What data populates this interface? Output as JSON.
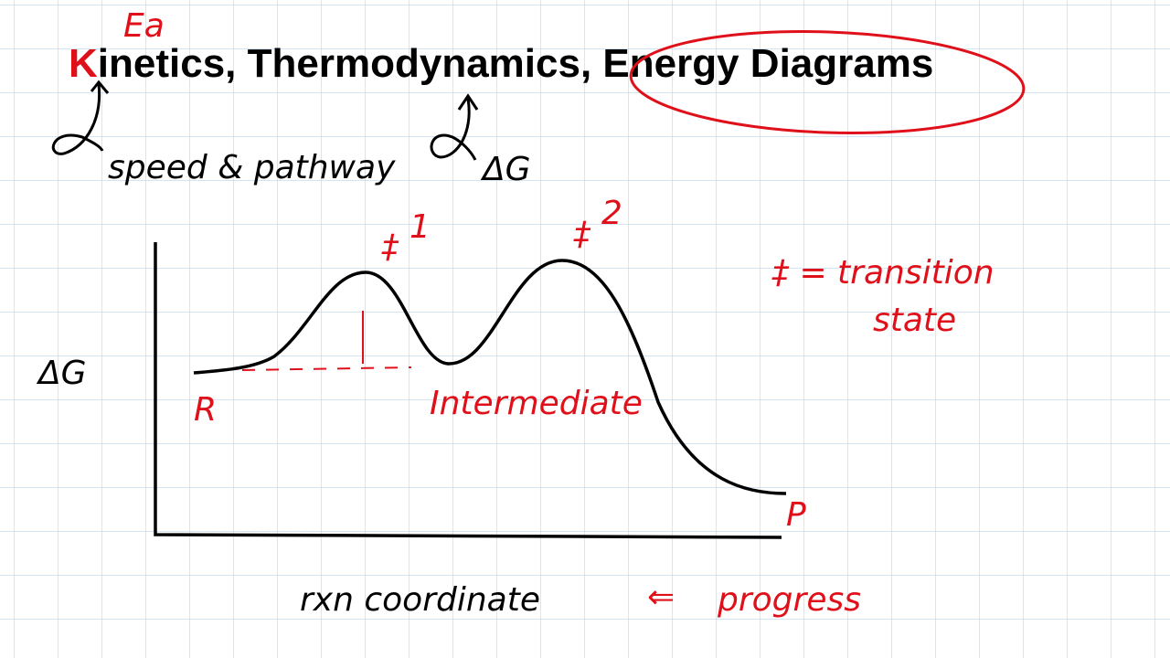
{
  "header": {
    "title_first_letter": "K",
    "title_middle": "inetics, Thermodynamics, ",
    "title_circled": "Energy Diagrams"
  },
  "annotations": {
    "ea": "Ea",
    "kinetics_note": "speed & pathway",
    "thermo_note": "ΔG"
  },
  "diagram": {
    "y_axis_label": "ΔG",
    "reactant": "R",
    "product": "P",
    "intermediate": "Intermediate",
    "ts1_symbol": "‡",
    "ts1_index": "1",
    "ts2_symbol": "‡",
    "ts2_index": "2",
    "x_axis_label": "rxn coordinate",
    "x_axis_arrow": "⇐",
    "x_axis_alt": "progress"
  },
  "legend": {
    "line1": "‡ = transition",
    "line2": "state"
  }
}
